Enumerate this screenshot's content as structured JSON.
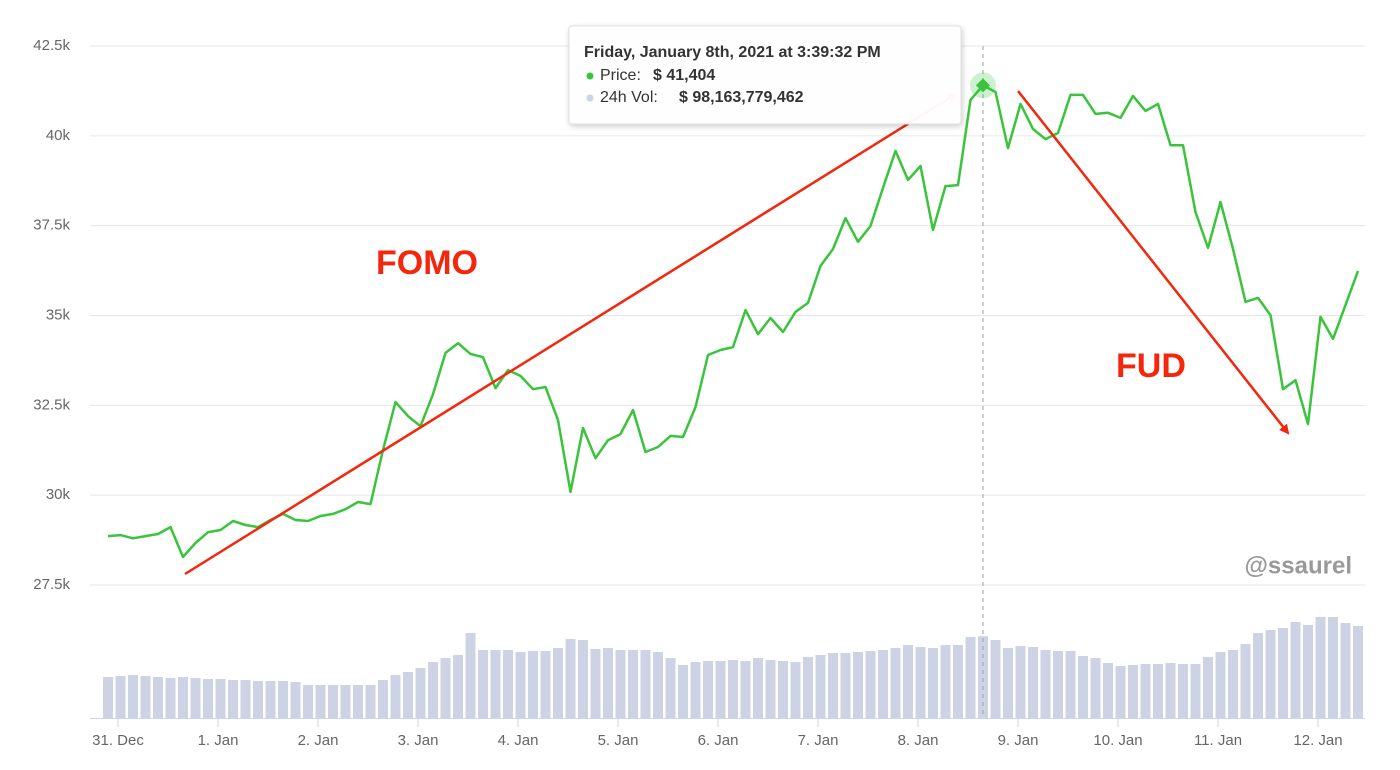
{
  "chart_data": {
    "type": "line",
    "x": [
      -0.1,
      0.025,
      0.15,
      0.275,
      0.4,
      0.525,
      0.65,
      0.775,
      0.9,
      1.025,
      1.15,
      1.275,
      1.4,
      1.525,
      1.65,
      1.775,
      1.9,
      2.025,
      2.15,
      2.275,
      2.4,
      2.525,
      2.65,
      2.775,
      2.9,
      3.025,
      3.15,
      3.275,
      3.4,
      3.525,
      3.65,
      3.775,
      3.9,
      4.025,
      4.15,
      4.275,
      4.4,
      4.525,
      4.65,
      4.775,
      4.9,
      5.025,
      5.15,
      5.275,
      5.4,
      5.525,
      5.65,
      5.775,
      5.9,
      6.025,
      6.15,
      6.275,
      6.4,
      6.525,
      6.65,
      6.775,
      6.9,
      7.025,
      7.15,
      7.275,
      7.4,
      7.525,
      7.65,
      7.775,
      7.9,
      8.025,
      8.15,
      8.275,
      8.4,
      8.525,
      8.65,
      8.775,
      8.9,
      9.025,
      9.15,
      9.275,
      9.4,
      9.525,
      9.65,
      9.775,
      9.9,
      10.025,
      10.15,
      10.275,
      10.4,
      10.525,
      10.65,
      10.775,
      10.9,
      11.025,
      11.15,
      11.275,
      11.4,
      11.525,
      11.65,
      11.775,
      11.9,
      12.025,
      12.15,
      12.275,
      12.4
    ],
    "series": [
      {
        "color": "#39c43c",
        "values": [
          28860,
          28890,
          28800,
          28860,
          28920,
          29110,
          28280,
          28670,
          28970,
          29030,
          29280,
          29170,
          29110,
          29310,
          29480,
          29310,
          29280,
          29420,
          29480,
          29610,
          29810,
          29750,
          31260,
          32590,
          32200,
          31920,
          32810,
          33960,
          34230,
          33930,
          33840,
          32980,
          33480,
          33320,
          32950,
          33010,
          32090,
          30090,
          31870,
          31030,
          31530,
          31700,
          32370,
          31200,
          31340,
          31650,
          31620,
          32450,
          33900,
          34040,
          34120,
          35150,
          34480,
          34930,
          34540,
          35100,
          35350,
          36380,
          36850,
          37710,
          37050,
          37490,
          38550,
          39580,
          38770,
          39160,
          37380,
          38600,
          38630,
          41000,
          41404,
          41220,
          39660,
          40890,
          40190,
          39910,
          40080,
          41140,
          41140,
          40610,
          40640,
          40500,
          41110,
          40690,
          40890,
          39740,
          39740,
          37880,
          36880,
          38160,
          36850,
          35380,
          35490,
          35010,
          32950,
          33200,
          31980,
          34960,
          34350,
          35290,
          36240
        ]
      },
      {
        "type": "bar",
        "axis": "y2",
        "color": "#cdd3e4",
        "values": [
          49200000000,
          50400000000,
          51600000000,
          50400000000,
          49200000000,
          48000000000,
          49200000000,
          48000000000,
          46800000000,
          46800000000,
          45600000000,
          45600000000,
          44400000000,
          44400000000,
          44400000000,
          43200000000,
          39600000000,
          39600000000,
          39600000000,
          39600000000,
          39600000000,
          39600000000,
          45600000000,
          51600000000,
          55200000000,
          60000000000,
          67200000000,
          72000000000,
          75600000000,
          102000000000,
          81600000000,
          81600000000,
          81600000000,
          79200000000,
          80400000000,
          80400000000,
          84000000000,
          94800000000,
          93600000000,
          82800000000,
          84000000000,
          81600000000,
          81600000000,
          81600000000,
          79200000000,
          72000000000,
          63600000000,
          67200000000,
          68400000000,
          68400000000,
          69600000000,
          68400000000,
          72000000000,
          69600000000,
          68400000000,
          67200000000,
          73200000000,
          75600000000,
          78000000000,
          78000000000,
          79200000000,
          80400000000,
          81600000000,
          84000000000,
          87600000000,
          85200000000,
          84000000000,
          87600000000,
          87600000000,
          97200000000,
          98163779462,
          93600000000,
          84000000000,
          86400000000,
          85200000000,
          81600000000,
          80400000000,
          80400000000,
          74400000000,
          72000000000,
          66000000000,
          62400000000,
          63600000000,
          64800000000,
          64800000000,
          66000000000,
          64800000000,
          64800000000,
          73200000000,
          79200000000,
          81600000000,
          88800000000,
          102000000000,
          105600000000,
          108000000000,
          115200000000,
          111600000000,
          121200000000,
          121200000000,
          114000000000,
          110400000000
        ]
      }
    ],
    "xlim": [
      -0.28,
      12.47
    ],
    "xticks": [
      {
        "value": 0,
        "label": "31. Dec"
      },
      {
        "value": 1,
        "label": "1. Jan"
      },
      {
        "value": 2,
        "label": "2. Jan"
      },
      {
        "value": 3,
        "label": "3. Jan"
      },
      {
        "value": 4,
        "label": "4. Jan"
      },
      {
        "value": 5,
        "label": "5. Jan"
      },
      {
        "value": 6,
        "label": "6. Jan"
      },
      {
        "value": 7,
        "label": "7. Jan"
      },
      {
        "value": 8,
        "label": "8. Jan"
      },
      {
        "value": 9,
        "label": "9. Jan"
      },
      {
        "value": 10,
        "label": "10. Jan"
      },
      {
        "value": 11,
        "label": "11. Jan"
      },
      {
        "value": 12,
        "label": "12. Jan"
      }
    ],
    "ylim": [
      27500,
      42500
    ],
    "yticks": [
      {
        "value": 27500,
        "label": "27.5k"
      },
      {
        "value": 30000,
        "label": "30k"
      },
      {
        "value": 32500,
        "label": "32.5k"
      },
      {
        "value": 35000,
        "label": "35k"
      },
      {
        "value": 37500,
        "label": "37.5k"
      },
      {
        "value": 40000,
        "label": "40k"
      },
      {
        "value": 42500,
        "label": "42.5k"
      }
    ],
    "y2lim": [
      0,
      150000000000
    ],
    "grid": true,
    "annotations": [
      "FOMO",
      "FUD"
    ],
    "watermark": "@ssaurel",
    "tooltip": {
      "title": "Friday, January 8th, 2021 at 3:39:32 PM",
      "price_label": "Price:",
      "price": "$ 41,404",
      "volume_label": "24h Vol:",
      "volume": "$ 98,163,779,462"
    }
  }
}
